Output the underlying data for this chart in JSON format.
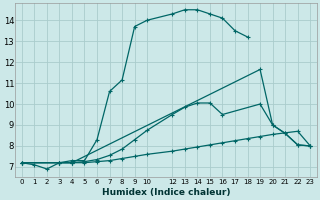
{
  "background_color": "#cce8e8",
  "grid_color": "#aacccc",
  "line_color": "#006666",
  "xlabel": "Humidex (Indice chaleur)",
  "xlim": [
    -0.5,
    23.5
  ],
  "ylim": [
    6.5,
    14.8
  ],
  "xticks": [
    0,
    1,
    2,
    3,
    4,
    5,
    6,
    7,
    8,
    9,
    10,
    12,
    13,
    14,
    15,
    16,
    17,
    18,
    19,
    20,
    21,
    22,
    23
  ],
  "yticks": [
    7,
    8,
    9,
    10,
    11,
    12,
    13,
    14
  ],
  "lines": [
    {
      "x": [
        0,
        1,
        2,
        3,
        4,
        5,
        6,
        7,
        8,
        9,
        10,
        12,
        13,
        14,
        15,
        16,
        17,
        18
      ],
      "y": [
        7.2,
        7.1,
        6.9,
        7.2,
        7.3,
        7.3,
        8.3,
        10.6,
        11.15,
        13.7,
        14.0,
        14.3,
        14.5,
        14.5,
        14.3,
        14.1,
        13.5,
        13.2
      ]
    },
    {
      "x": [
        0,
        3,
        4,
        5,
        6,
        7,
        8,
        9,
        10,
        12,
        13,
        14,
        15,
        16,
        17,
        18,
        19,
        20,
        22,
        23
      ],
      "y": [
        7.2,
        7.2,
        7.2,
        7.2,
        7.25,
        7.3,
        7.4,
        7.5,
        7.6,
        7.75,
        7.85,
        7.95,
        8.05,
        8.15,
        8.25,
        8.35,
        8.45,
        8.55,
        8.7,
        8.0
      ]
    },
    {
      "x": [
        0,
        3,
        4,
        5,
        6,
        7,
        8,
        9,
        10,
        12,
        13,
        14,
        15,
        16,
        19,
        20,
        21,
        22,
        23
      ],
      "y": [
        7.2,
        7.2,
        7.2,
        7.25,
        7.35,
        7.55,
        7.85,
        8.3,
        8.75,
        9.5,
        9.85,
        10.05,
        10.05,
        9.5,
        10.0,
        9.0,
        8.6,
        8.05,
        8.0
      ]
    },
    {
      "x": [
        0,
        3,
        4,
        19,
        20,
        21,
        22,
        23
      ],
      "y": [
        7.2,
        7.2,
        7.2,
        11.65,
        9.0,
        8.6,
        8.05,
        8.0
      ]
    }
  ]
}
